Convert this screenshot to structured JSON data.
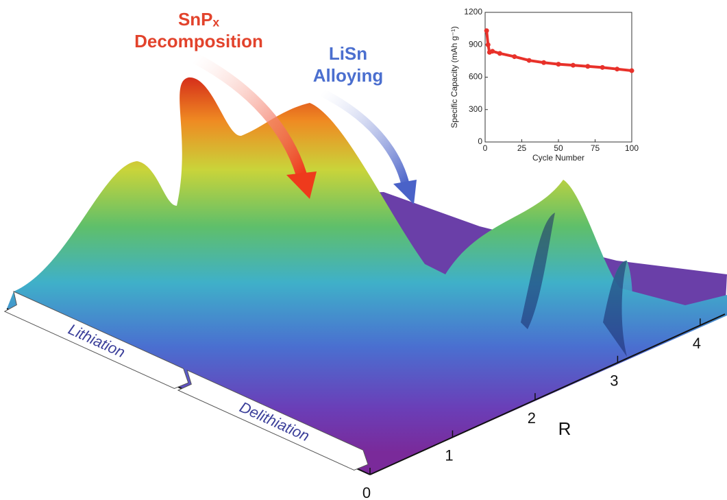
{
  "chart_data": [
    {
      "type": "surface",
      "annotations": [
        {
          "lines": [
            "SnPₓ",
            "Decomposition"
          ],
          "color": "#e2432c"
        },
        {
          "lines": [
            "LiSn",
            "Alloying"
          ],
          "color": "#4b6fcf"
        }
      ],
      "stages": [
        "Lithiation",
        "Delithiation"
      ],
      "stage_color": "#3b3f9a",
      "xlabel": "R",
      "xlim": [
        0,
        4.3
      ],
      "xticks": [
        0,
        1,
        2,
        3,
        4
      ]
    },
    {
      "type": "line",
      "xlabel": "Cycle Number",
      "ylabel": "Specific Capacity (mAh g⁻¹)",
      "x": [
        1,
        2,
        3,
        5,
        10,
        20,
        30,
        40,
        50,
        60,
        70,
        80,
        90,
        100
      ],
      "series": [
        {
          "color": "#e8312a",
          "values": [
            1030,
            900,
            830,
            840,
            820,
            790,
            755,
            735,
            720,
            710,
            700,
            690,
            675,
            660
          ]
        }
      ],
      "xlim": [
        0,
        100
      ],
      "xticks": [
        0,
        25,
        50,
        75,
        100
      ],
      "ylim": [
        0,
        1200
      ],
      "yticks": [
        0,
        300,
        600,
        900,
        1200
      ]
    }
  ]
}
